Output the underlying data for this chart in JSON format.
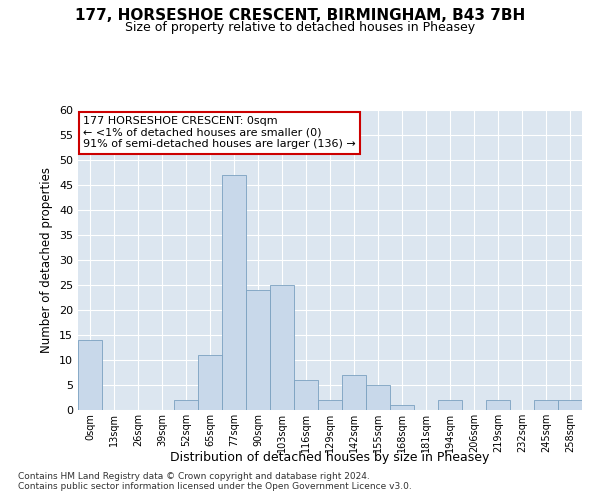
{
  "title_line1": "177, HORSESHOE CRESCENT, BIRMINGHAM, B43 7BH",
  "title_line2": "Size of property relative to detached houses in Pheasey",
  "xlabel": "Distribution of detached houses by size in Pheasey",
  "ylabel": "Number of detached properties",
  "bar_color": "#c8d8ea",
  "bar_edge_color": "#7aa0c0",
  "background_color": "#dce6f0",
  "categories": [
    "0sqm",
    "13sqm",
    "26sqm",
    "39sqm",
    "52sqm",
    "65sqm",
    "77sqm",
    "90sqm",
    "103sqm",
    "116sqm",
    "129sqm",
    "142sqm",
    "155sqm",
    "168sqm",
    "181sqm",
    "194sqm",
    "206sqm",
    "219sqm",
    "232sqm",
    "245sqm",
    "258sqm"
  ],
  "values": [
    14,
    0,
    0,
    0,
    2,
    11,
    47,
    24,
    25,
    6,
    2,
    7,
    5,
    1,
    0,
    2,
    0,
    2,
    0,
    2,
    2
  ],
  "ylim": [
    0,
    60
  ],
  "yticks": [
    0,
    5,
    10,
    15,
    20,
    25,
    30,
    35,
    40,
    45,
    50,
    55,
    60
  ],
  "annotation_text": "177 HORSESHOE CRESCENT: 0sqm\n← <1% of detached houses are smaller (0)\n91% of semi-detached houses are larger (136) →",
  "annotation_box_color": "#ffffff",
  "annotation_border_color": "#cc0000",
  "footnote_line1": "Contains HM Land Registry data © Crown copyright and database right 2024.",
  "footnote_line2": "Contains public sector information licensed under the Open Government Licence v3.0."
}
